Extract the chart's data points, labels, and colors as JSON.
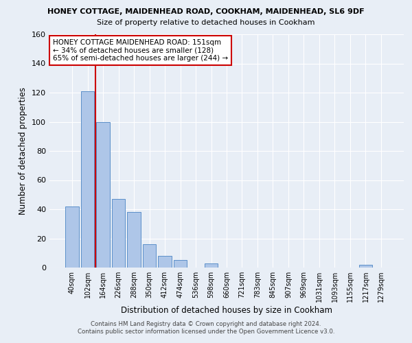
{
  "title_line1": "HONEY COTTAGE, MAIDENHEAD ROAD, COOKHAM, MAIDENHEAD, SL6 9DF",
  "title_line2": "Size of property relative to detached houses in Cookham",
  "xlabel": "Distribution of detached houses by size in Cookham",
  "ylabel": "Number of detached properties",
  "bar_labels": [
    "40sqm",
    "102sqm",
    "164sqm",
    "226sqm",
    "288sqm",
    "350sqm",
    "412sqm",
    "474sqm",
    "536sqm",
    "598sqm",
    "660sqm",
    "721sqm",
    "783sqm",
    "845sqm",
    "907sqm",
    "969sqm",
    "1031sqm",
    "1093sqm",
    "1155sqm",
    "1217sqm",
    "1279sqm"
  ],
  "bar_values": [
    42,
    121,
    100,
    47,
    38,
    16,
    8,
    5,
    0,
    3,
    0,
    0,
    0,
    0,
    0,
    0,
    0,
    0,
    0,
    2,
    0
  ],
  "bar_color": "#aec6e8",
  "bar_edge_color": "#5b8fc9",
  "bg_color": "#e8eef6",
  "grid_color": "#ffffff",
  "annotation_text": "HONEY COTTAGE MAIDENHEAD ROAD: 151sqm\n← 34% of detached houses are smaller (128)\n65% of semi-detached houses are larger (244) →",
  "annotation_box_color": "#ffffff",
  "annotation_box_edge": "#cc0000",
  "red_line_color": "#cc0000",
  "footer_line1": "Contains HM Land Registry data © Crown copyright and database right 2024.",
  "footer_line2": "Contains public sector information licensed under the Open Government Licence v3.0.",
  "ylim": [
    0,
    160
  ],
  "yticks": [
    0,
    20,
    40,
    60,
    80,
    100,
    120,
    140,
    160
  ]
}
